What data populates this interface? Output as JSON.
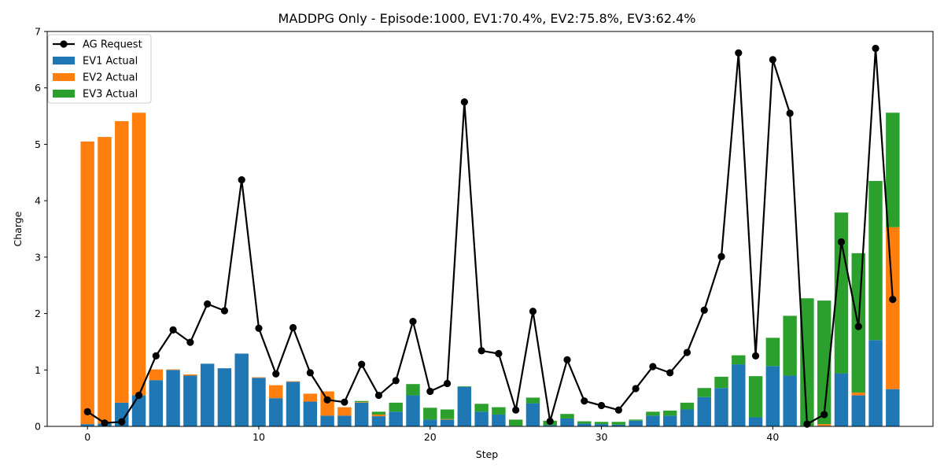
{
  "chart_data": {
    "type": "bar",
    "title": "MADDPG Only - Episode:1000, EV1:70.4%, EV2:75.8%, EV3:62.4%",
    "xlabel": "Step",
    "ylabel": "Charge",
    "xlim": [
      -2.35,
      49.35
    ],
    "ylim": [
      0,
      7.0
    ],
    "xticks": [
      0,
      10,
      20,
      30,
      40
    ],
    "yticks": [
      0,
      1,
      2,
      3,
      4,
      5,
      6,
      7
    ],
    "grid": false,
    "legend_position": "top-left",
    "stacked": true,
    "x": [
      0,
      1,
      2,
      3,
      4,
      5,
      6,
      7,
      8,
      9,
      10,
      11,
      12,
      13,
      14,
      15,
      16,
      17,
      18,
      19,
      20,
      21,
      22,
      23,
      24,
      25,
      26,
      27,
      28,
      29,
      30,
      31,
      32,
      33,
      34,
      35,
      36,
      37,
      38,
      39,
      40,
      41,
      42,
      43,
      44,
      45,
      46,
      47
    ],
    "series": [
      {
        "name": "EV1 Actual",
        "kind": "bar",
        "color": "#1f77b4",
        "values": [
          0.04,
          0.05,
          0.42,
          0.55,
          0.82,
          1.0,
          0.9,
          1.11,
          1.03,
          1.29,
          0.86,
          0.5,
          0.79,
          0.44,
          0.19,
          0.19,
          0.42,
          0.18,
          0.26,
          0.55,
          0.12,
          0.12,
          0.7,
          0.26,
          0.21,
          0.01,
          0.41,
          0.02,
          0.14,
          0.05,
          0.04,
          0.03,
          0.1,
          0.19,
          0.19,
          0.3,
          0.52,
          0.68,
          1.1,
          0.16,
          1.07,
          0.9,
          0.01,
          0.01,
          0.94,
          0.55,
          1.53,
          0.66
        ]
      },
      {
        "name": "EV2 Actual",
        "kind": "bar",
        "color": "#ff7f0e",
        "values": [
          5.01,
          5.08,
          4.99,
          5.01,
          0.19,
          0.01,
          0.02,
          0.0,
          0.0,
          0.0,
          0.01,
          0.23,
          0.01,
          0.14,
          0.43,
          0.15,
          0.01,
          0.03,
          0.0,
          0.0,
          0.0,
          0.01,
          0.0,
          0.0,
          0.0,
          0.0,
          0.0,
          0.0,
          0.0,
          0.0,
          0.0,
          0.0,
          0.0,
          0.0,
          0.0,
          0.0,
          0.0,
          0.0,
          0.0,
          0.0,
          0.0,
          0.0,
          0.0,
          0.03,
          0.0,
          0.05,
          0.0,
          2.87
        ]
      },
      {
        "name": "EV3 Actual",
        "kind": "bar",
        "color": "#2ca02c",
        "values": [
          0.0,
          0.0,
          0.0,
          0.0,
          0.0,
          0.0,
          0.0,
          0.0,
          0.0,
          0.0,
          0.0,
          0.0,
          0.0,
          0.0,
          0.0,
          0.0,
          0.02,
          0.05,
          0.16,
          0.2,
          0.21,
          0.17,
          0.01,
          0.14,
          0.13,
          0.11,
          0.1,
          0.08,
          0.08,
          0.04,
          0.04,
          0.05,
          0.02,
          0.07,
          0.09,
          0.12,
          0.16,
          0.2,
          0.16,
          0.73,
          0.5,
          1.06,
          2.26,
          2.19,
          2.85,
          2.47,
          2.82,
          2.03
        ]
      },
      {
        "name": "AG Request",
        "kind": "line",
        "color": "#000000",
        "values": [
          0.26,
          0.06,
          0.08,
          0.55,
          1.25,
          1.71,
          1.49,
          2.17,
          2.05,
          4.37,
          1.74,
          0.93,
          1.75,
          0.95,
          0.47,
          0.43,
          1.1,
          0.55,
          0.81,
          1.86,
          0.62,
          0.76,
          5.75,
          1.34,
          1.29,
          0.29,
          2.04,
          0.09,
          1.18,
          0.45,
          0.37,
          0.29,
          0.67,
          1.06,
          0.95,
          1.31,
          2.06,
          3.01,
          6.62,
          1.25,
          6.5,
          5.55,
          0.04,
          0.21,
          3.27,
          1.77,
          6.7,
          2.25
        ]
      }
    ]
  }
}
